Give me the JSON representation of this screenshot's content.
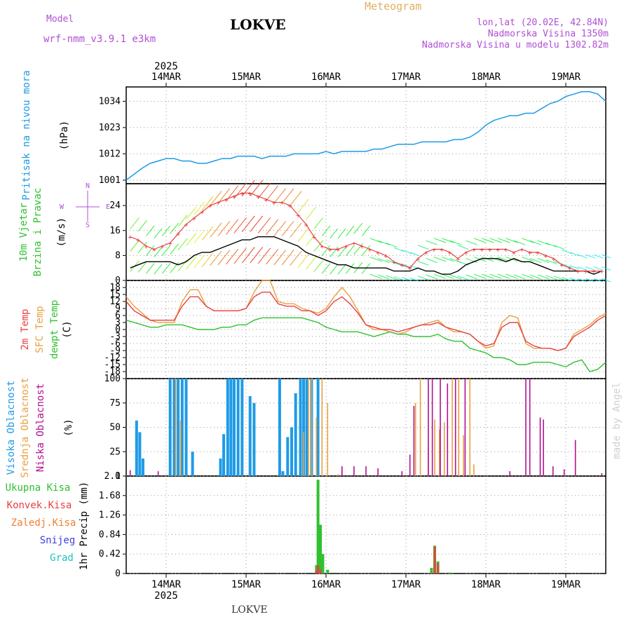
{
  "header": {
    "model_label": "Model",
    "model_name": "wrf-nmm_v3.9.1 e3km",
    "title": "LOKVE",
    "meteogram": "Meteogram",
    "coords": "lon,lat (20.02E, 42.84N)",
    "altitude": "Nadmorska Visina 1350m",
    "model_altitude": "Nadmorska Visina u modelu 1302.82m",
    "watermark": "made by Angel",
    "footer": "LOKVE"
  },
  "colors": {
    "pressure": "#1e9be6",
    "speed": "#000000",
    "gust": "#e84040",
    "temp2m": "#e84040",
    "sfc": "#e8a040",
    "dew": "#30c030",
    "high": "#1e9be6",
    "mid": "#e8a040",
    "low": "#b01090",
    "total": "#30c030",
    "conv": "#e84040",
    "frozen": "#f08030",
    "snow": "#4040e0",
    "grad": "#20c0c0"
  },
  "chart_data": {
    "type": "line",
    "time_axis": {
      "year": "2025",
      "ticks": [
        "14MAR",
        "15MAR",
        "16MAR",
        "17MAR",
        "18MAR",
        "19MAR"
      ],
      "range_days": [
        -0.5,
        5.5
      ]
    },
    "panels": {
      "pressure": {
        "ylabel_left": "Pritisak na nivou mora",
        "unit": "(hPa)",
        "ticks": [
          1001,
          1012,
          1023,
          1034
        ],
        "ylim": [
          999.5,
          1040
        ],
        "series": {
          "x": [
            -0.5,
            -0.42,
            -0.3,
            -0.2,
            -0.1,
            0,
            0.1,
            0.2,
            0.3,
            0.4,
            0.5,
            0.6,
            0.7,
            0.8,
            0.9,
            1,
            1.1,
            1.2,
            1.3,
            1.4,
            1.5,
            1.6,
            1.7,
            1.8,
            1.9,
            2,
            2.1,
            2.2,
            2.3,
            2.4,
            2.5,
            2.6,
            2.7,
            2.8,
            2.9,
            3,
            3.1,
            3.2,
            3.3,
            3.4,
            3.5,
            3.6,
            3.7,
            3.8,
            3.9,
            4,
            4.1,
            4.2,
            4.3,
            4.4,
            4.5,
            4.6,
            4.7,
            4.8,
            4.9,
            5,
            5.1,
            5.2,
            5.3,
            5.4,
            5.5
          ],
          "y": [
            1001,
            1003,
            1006,
            1008,
            1009,
            1010,
            1010,
            1009,
            1009,
            1008,
            1008,
            1009,
            1010,
            1010,
            1011,
            1011,
            1011,
            1010,
            1011,
            1011,
            1011,
            1012,
            1012,
            1012,
            1012,
            1013,
            1012,
            1013,
            1013,
            1013,
            1013,
            1014,
            1014,
            1015,
            1016,
            1016,
            1016,
            1017,
            1017,
            1017,
            1017,
            1018,
            1018,
            1019,
            1021,
            1024,
            1026,
            1027,
            1028,
            1028,
            1029,
            1029,
            1031,
            1033,
            1034,
            1036,
            1037,
            1038,
            1038,
            1037,
            1034
          ]
        }
      },
      "wind": {
        "ylabel_left_1": "10m Vjetar",
        "ylabel_left_2": "Brzina i Pravac",
        "unit": "(m/s)",
        "ticks": [
          0,
          8,
          16,
          24
        ],
        "ylim": [
          0,
          31
        ],
        "compass": [
          "W",
          "S",
          "N",
          "E"
        ],
        "speed": {
          "name": "10m wind speed",
          "x": [
            -0.45,
            -0.35,
            -0.25,
            -0.15,
            -0.05,
            0.05,
            0.15,
            0.25,
            0.35,
            0.45,
            0.55,
            0.65,
            0.75,
            0.85,
            0.95,
            1.05,
            1.15,
            1.25,
            1.35,
            1.45,
            1.55,
            1.65,
            1.75,
            1.85,
            1.95,
            2.05,
            2.15,
            2.25,
            2.35,
            2.45,
            2.55,
            2.65,
            2.75,
            2.85,
            2.95,
            3.05,
            3.15,
            3.25,
            3.35,
            3.45,
            3.55,
            3.65,
            3.75,
            3.85,
            3.95,
            4.05,
            4.15,
            4.25,
            4.35,
            4.45,
            4.55,
            4.65,
            4.75,
            4.85,
            4.95,
            5.05,
            5.15,
            5.25,
            5.35,
            5.45
          ],
          "y": [
            4,
            5,
            6,
            6,
            6,
            6,
            5,
            6,
            8,
            9,
            9,
            10,
            11,
            12,
            13,
            13,
            14,
            14,
            14,
            13,
            12,
            11,
            9,
            8,
            7,
            6,
            5,
            5,
            4,
            4,
            4,
            4,
            4,
            3,
            3,
            3,
            4,
            3,
            3,
            2,
            2,
            3,
            5,
            6,
            7,
            7,
            7,
            6,
            7,
            6,
            6,
            5,
            4,
            3,
            3,
            3,
            3,
            3,
            2,
            3
          ]
        },
        "gust": {
          "name": "wind gust",
          "x": [
            -0.45,
            -0.35,
            -0.25,
            -0.15,
            -0.05,
            0.05,
            0.15,
            0.25,
            0.35,
            0.45,
            0.55,
            0.65,
            0.75,
            0.85,
            0.95,
            1.05,
            1.15,
            1.25,
            1.35,
            1.45,
            1.55,
            1.65,
            1.75,
            1.85,
            1.95,
            2.05,
            2.15,
            2.25,
            2.35,
            2.45,
            2.55,
            2.65,
            2.75,
            2.85,
            2.95,
            3.05,
            3.15,
            3.25,
            3.35,
            3.45,
            3.55,
            3.65,
            3.75,
            3.85,
            3.95,
            4.05,
            4.15,
            4.25,
            4.35,
            4.45,
            4.55,
            4.65,
            4.75,
            4.85,
            4.95,
            5.05,
            5.15,
            5.25,
            5.35,
            5.45
          ],
          "y": [
            14,
            13,
            11,
            10,
            11,
            12,
            15,
            18,
            20,
            22,
            24,
            25,
            26,
            27,
            28,
            28,
            27,
            26,
            25,
            25,
            24,
            21,
            18,
            14,
            11,
            10,
            10,
            11,
            12,
            11,
            10,
            9,
            8,
            6,
            5,
            4,
            7,
            9,
            10,
            10,
            9,
            7,
            9,
            10,
            10,
            10,
            10,
            10,
            9,
            10,
            9,
            9,
            8,
            7,
            5,
            4,
            3,
            3,
            3,
            3
          ]
        }
      },
      "temperature": {
        "ylabel_left_1": "2m Temp",
        "ylabel_left_2": "SFC Temp",
        "ylabel_left_3": "dewpt Temp",
        "unit": "(C)",
        "ticks": [
          -18,
          -15,
          -12,
          -9,
          -6,
          -3,
          0,
          3,
          6,
          9,
          12,
          15,
          18
        ],
        "ylim": [
          -21,
          21
        ],
        "x": [
          -0.5,
          -0.4,
          -0.3,
          -0.2,
          -0.1,
          0,
          0.1,
          0.2,
          0.3,
          0.4,
          0.5,
          0.6,
          0.7,
          0.8,
          0.9,
          1,
          1.1,
          1.2,
          1.3,
          1.4,
          1.5,
          1.6,
          1.7,
          1.8,
          1.9,
          2,
          2.1,
          2.2,
          2.3,
          2.4,
          2.5,
          2.6,
          2.7,
          2.8,
          2.9,
          3,
          3.1,
          3.2,
          3.3,
          3.4,
          3.5,
          3.6,
          3.7,
          3.8,
          3.9,
          4,
          4.1,
          4.2,
          4.3,
          4.4,
          4.5,
          4.6,
          4.7,
          4.8,
          4.9,
          5,
          5.1,
          5.2,
          5.3,
          5.4,
          5.5
        ],
        "t2m": [
          12,
          8,
          6,
          4,
          4,
          4,
          4,
          10,
          14,
          14,
          10,
          8,
          8,
          8,
          8,
          9,
          14,
          16,
          16,
          11,
          10,
          10,
          8,
          8,
          6,
          8,
          12,
          14,
          11,
          7,
          2,
          1,
          0,
          0,
          -1,
          0,
          1,
          2,
          2,
          3,
          1,
          0,
          -1,
          -2,
          -5,
          -7,
          -6,
          1,
          3,
          3,
          -5,
          -7,
          -8,
          -8,
          -9,
          -8,
          -3,
          -1,
          1,
          4,
          6
        ],
        "sfc": [
          14,
          10,
          7,
          4,
          3,
          3,
          3,
          12,
          17,
          17,
          10,
          8,
          8,
          8,
          8,
          9,
          16,
          21,
          21,
          12,
          11,
          11,
          9,
          8,
          7,
          9,
          14,
          18,
          14,
          8,
          2,
          0,
          0,
          -1,
          -2,
          -1,
          1,
          2,
          3,
          4,
          1,
          -1,
          -1,
          -2,
          -5,
          -8,
          -7,
          3,
          6,
          5,
          -6,
          -8,
          -8,
          -8,
          -9,
          -8,
          -2,
          0,
          2,
          5,
          7
        ],
        "dew": [
          4,
          3,
          2,
          1,
          1,
          2,
          2,
          2,
          1,
          0,
          0,
          0,
          1,
          1,
          2,
          2,
          4,
          5,
          5,
          5,
          5,
          5,
          5,
          4,
          3,
          1,
          0,
          -1,
          -1,
          -1,
          -2,
          -3,
          -2,
          -1,
          -2,
          -2,
          -3,
          -3,
          -3,
          -2,
          -4,
          -5,
          -5,
          -8,
          -9,
          -10,
          -12,
          -12,
          -13,
          -15,
          -15,
          -14,
          -14,
          -14,
          -15,
          -16,
          -14,
          -13,
          -18,
          -17,
          -14
        ]
      },
      "cloud": {
        "ylabel_left_1": "Visoka Oblacnost",
        "ylabel_left_2": "Srednja Oblacnost",
        "ylabel_left_3": "Niska Oblacnost",
        "unit": "(%)",
        "ticks": [
          0,
          25,
          50,
          75,
          100
        ],
        "ylim": [
          0,
          100
        ],
        "high": [
          [
            -0.37,
            57
          ],
          [
            -0.33,
            45
          ],
          [
            -0.29,
            18
          ],
          [
            0.05,
            100
          ],
          [
            0.1,
            100
          ],
          [
            0.15,
            100
          ],
          [
            0.2,
            100
          ],
          [
            0.25,
            100
          ],
          [
            0.33,
            25
          ],
          [
            0.68,
            18
          ],
          [
            0.72,
            43
          ],
          [
            0.77,
            100
          ],
          [
            0.81,
            100
          ],
          [
            0.85,
            100
          ],
          [
            0.9,
            100
          ],
          [
            0.95,
            100
          ],
          [
            1.05,
            82
          ],
          [
            1.1,
            75
          ],
          [
            1.42,
            100
          ],
          [
            1.46,
            5
          ],
          [
            1.52,
            40
          ],
          [
            1.57,
            50
          ],
          [
            1.62,
            85
          ],
          [
            1.68,
            100
          ],
          [
            1.72,
            100
          ],
          [
            1.76,
            100
          ],
          [
            1.82,
            100
          ],
          [
            1.9,
            100
          ]
        ],
        "mid": [
          [
            0.12,
            100
          ],
          [
            0.18,
            57
          ],
          [
            1.72,
            45
          ],
          [
            1.78,
            100
          ],
          [
            1.82,
            100
          ],
          [
            1.88,
            60
          ],
          [
            1.95,
            100
          ],
          [
            2.02,
            75
          ],
          [
            2.15,
            2
          ],
          [
            3.12,
            75
          ],
          [
            3.18,
            100
          ],
          [
            3.28,
            30
          ],
          [
            3.36,
            58
          ],
          [
            3.42,
            48
          ],
          [
            3.48,
            55
          ],
          [
            3.58,
            100
          ],
          [
            3.66,
            100
          ],
          [
            3.72,
            42
          ],
          [
            3.8,
            100
          ],
          [
            3.85,
            12
          ]
        ],
        "low": [
          [
            -0.45,
            6
          ],
          [
            -0.1,
            5
          ],
          [
            2.2,
            10
          ],
          [
            2.35,
            10
          ],
          [
            2.5,
            10
          ],
          [
            2.65,
            8
          ],
          [
            2.95,
            5
          ],
          [
            3.05,
            22
          ],
          [
            3.1,
            72
          ],
          [
            3.28,
            100
          ],
          [
            3.33,
            100
          ],
          [
            3.43,
            100
          ],
          [
            3.52,
            95
          ],
          [
            3.62,
            100
          ],
          [
            3.74,
            100
          ],
          [
            4.3,
            5
          ],
          [
            4.5,
            100
          ],
          [
            4.55,
            100
          ],
          [
            4.68,
            60
          ],
          [
            4.72,
            58
          ],
          [
            4.84,
            10
          ],
          [
            4.98,
            7
          ],
          [
            5.12,
            37
          ],
          [
            5.45,
            3
          ]
        ]
      },
      "precip": {
        "ylabel_left": "1hr Precip",
        "unit": "(mm)",
        "legend": [
          "Ukupna Kisa",
          "Konvek.Kisa",
          "Zaledj.Kisa",
          "Snijeg",
          "Grad"
        ],
        "ticks": [
          0,
          0.42,
          0.84,
          1.26,
          1.68,
          2.1
        ],
        "ylim": [
          0,
          2.1
        ],
        "total": [
          [
            1.88,
            0.18
          ],
          [
            1.9,
            2.02
          ],
          [
            1.93,
            1.05
          ],
          [
            1.96,
            0.42
          ],
          [
            2.02,
            0.08
          ],
          [
            3.32,
            0.12
          ],
          [
            3.36,
            0.6
          ],
          [
            3.4,
            0.26
          ],
          [
            3.55,
            0.02
          ]
        ],
        "convective": [
          [
            1.88,
            0.06
          ],
          [
            1.9,
            0.18
          ],
          [
            1.93,
            0.08
          ],
          [
            3.32,
            0.02
          ],
          [
            3.36,
            0.58
          ],
          [
            3.4,
            0.22
          ]
        ]
      }
    }
  }
}
